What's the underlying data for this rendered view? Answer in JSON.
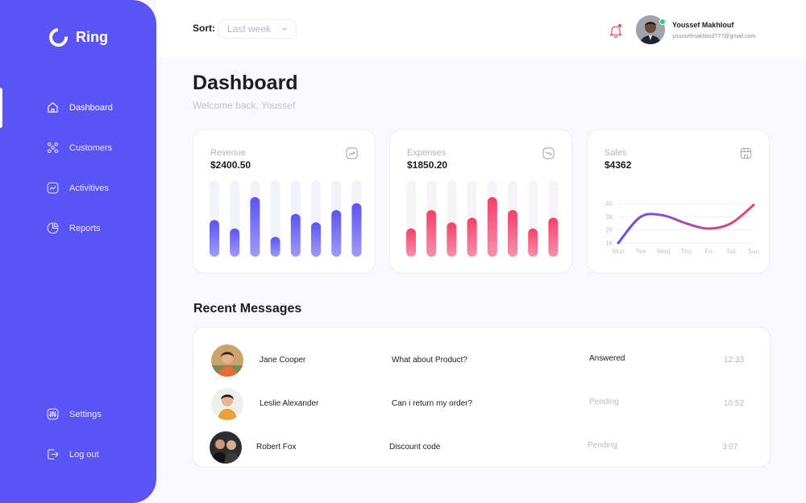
{
  "app": {
    "name": "Ring"
  },
  "sidebar": {
    "items": [
      {
        "label": "Dashboard",
        "icon": "home-icon"
      },
      {
        "label": "Customers",
        "icon": "people-icon"
      },
      {
        "label": "Activitives",
        "icon": "activity-icon"
      },
      {
        "label": "Reports",
        "icon": "pie-chart-icon"
      }
    ],
    "bottom": [
      {
        "label": "Settings",
        "icon": "settings-sliders-icon"
      },
      {
        "label": "Log out",
        "icon": "logout-icon"
      }
    ]
  },
  "header": {
    "sort_label": "Sort:",
    "sort_value": "Last week",
    "user_name": "Youssef Makhlouf",
    "user_email": "youssefmakhlouf777@gmail.com"
  },
  "main": {
    "title": "Dashboard",
    "welcome": "Welcome back, Youssef"
  },
  "cards": {
    "revenue": {
      "label": "Revenue",
      "value": "$2400.50",
      "icon": "trend-up-icon"
    },
    "expenses": {
      "label": "Expenses",
      "value": "$1850.20",
      "icon": "trend-down-icon"
    },
    "sales": {
      "label": "Sales",
      "value": "$4362",
      "icon": "shop-icon"
    }
  },
  "chart_data": [
    {
      "type": "bar",
      "title": "Revenue",
      "series": [
        {
          "values": [
            0.48,
            0.37,
            0.78,
            0.26,
            0.56,
            0.45,
            0.61,
            0.7
          ]
        }
      ],
      "ylim": [
        0,
        1
      ],
      "color": "#5b54f4"
    },
    {
      "type": "bar",
      "title": "Expenses",
      "series": [
        {
          "values": [
            0.37,
            0.61,
            0.45,
            0.51,
            0.78,
            0.61,
            0.37,
            0.51
          ]
        }
      ],
      "ylim": [
        0,
        1
      ],
      "color": "#f5406a"
    },
    {
      "type": "line",
      "title": "Sales",
      "categories": [
        "Mon",
        "Tee",
        "Wed",
        "Thu",
        "Fri",
        "Sat",
        "Sun"
      ],
      "y_ticks": [
        "1K",
        "2K",
        "3K",
        "4K"
      ],
      "ylim": [
        1000,
        4000
      ],
      "values": [
        1000,
        3000,
        3100,
        2500,
        2100,
        2500,
        3900
      ],
      "gradient": [
        "#5b54f4",
        "#f5406a"
      ]
    }
  ],
  "messages": {
    "title": "Recent Messages",
    "rows": [
      {
        "name": "Jane Cooper",
        "text": "What about Product?",
        "status": "Answered",
        "time": "12:33"
      },
      {
        "name": "Leslie Alexander",
        "text": "Can i return my order?",
        "status": "Pending",
        "time": "10:52"
      },
      {
        "name": "Robert Fox",
        "text": "Discount code",
        "status": "Pending",
        "time": "3:07"
      }
    ]
  },
  "colors": {
    "accent": "#5b54f4",
    "expense": "#f5406a",
    "online": "#2fd060"
  }
}
